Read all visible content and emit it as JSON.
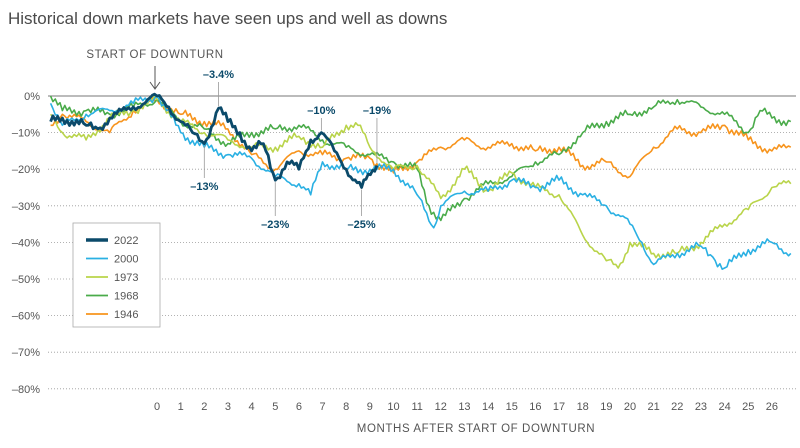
{
  "chart_data": {
    "type": "line",
    "title": "Historical down markets have seen ups and well as downs",
    "xlabel": "MONTHS AFTER START OF DOWNTURN",
    "ylabel": "",
    "start_label": "START OF DOWNTURN",
    "xlim": [
      -4.6,
      26.9
    ],
    "ylim": [
      -80,
      0
    ],
    "x_ticks": [
      "0",
      "1",
      "2",
      "3",
      "4",
      "5",
      "6",
      "7",
      "8",
      "9",
      "10",
      "11",
      "12",
      "13",
      "14",
      "15",
      "16",
      "17",
      "18",
      "19",
      "20",
      "21",
      "22",
      "23",
      "24",
      "25",
      "26"
    ],
    "y_ticks": [
      {
        "v": 0,
        "label": "0%"
      },
      {
        "v": -10,
        "label": "–10%"
      },
      {
        "v": -20,
        "label": "–20%"
      },
      {
        "v": -30,
        "label": "–30%"
      },
      {
        "v": -40,
        "label": "–40%"
      },
      {
        "v": -50,
        "label": "–50%"
      },
      {
        "v": -60,
        "label": "–60%"
      },
      {
        "v": -70,
        "label": "–70%"
      },
      {
        "v": -80,
        "label": "–80%"
      }
    ],
    "grid": "dotted horizontal",
    "legend_position": "left",
    "series": [
      {
        "name": "1946",
        "color": "#f7941d",
        "width": 1.6,
        "x": [
          -4.5,
          -4,
          -3,
          -2,
          -1,
          0,
          1,
          2,
          3,
          4,
          5,
          6,
          7,
          8,
          9,
          10,
          11,
          12,
          13,
          14,
          15,
          16,
          17,
          18,
          19,
          20,
          21,
          22,
          23,
          24,
          25,
          26,
          26.8
        ],
        "y": [
          -8,
          -5,
          -7,
          -10,
          -4,
          -1,
          -5,
          -7,
          -9,
          -16,
          -20,
          -15,
          -16,
          -17,
          -17,
          -21,
          -18,
          -14,
          -12,
          -14,
          -13,
          -15,
          -14,
          -19,
          -18,
          -22,
          -14,
          -9,
          -10,
          -8,
          -12,
          -15,
          -14
        ]
      },
      {
        "name": "1968",
        "color": "#4aab4a",
        "width": 1.6,
        "x": [
          -4.5,
          -4,
          -3,
          -2,
          -1,
          0,
          1,
          2,
          3,
          4,
          5,
          6,
          7,
          8,
          9,
          10,
          11,
          11.5,
          12,
          13,
          14,
          15,
          16,
          17,
          18,
          19,
          20,
          21,
          22,
          23,
          24,
          25,
          25.5,
          26,
          26.8
        ],
        "y": [
          0,
          -4,
          -4,
          -5,
          -3,
          -1,
          -7,
          -9,
          -13,
          -10,
          -9,
          -8,
          -12,
          -14,
          -16,
          -18,
          -20,
          -30,
          -34,
          -28,
          -24,
          -22,
          -18,
          -16,
          -10,
          -7,
          -5,
          -3,
          -1,
          -3,
          -5,
          -10,
          -4,
          -6,
          -7
        ]
      },
      {
        "name": "1973",
        "color": "#b9d44a",
        "width": 1.6,
        "x": [
          -4.5,
          -4,
          -3,
          -2,
          -1,
          0,
          1,
          2,
          3,
          4,
          5,
          6,
          7,
          8,
          8.5,
          9,
          10,
          11,
          12,
          13,
          14,
          15,
          16,
          17,
          18,
          19,
          19.5,
          20,
          21,
          22,
          23,
          24,
          25,
          26,
          26.8
        ],
        "y": [
          -5,
          -10,
          -12,
          -6,
          -4,
          -1,
          -7,
          -10,
          -12,
          -14,
          -14,
          -11,
          -14,
          -8,
          -8,
          -14,
          -20,
          -19,
          -28,
          -20,
          -26,
          -21,
          -25,
          -27,
          -38,
          -45,
          -47,
          -40,
          -43,
          -43,
          -40,
          -35,
          -31,
          -25,
          -24
        ]
      },
      {
        "name": "2000",
        "color": "#2ab0e3",
        "width": 1.6,
        "x": [
          -4.5,
          -4,
          -3,
          -2,
          -1,
          0,
          1,
          2,
          3,
          4,
          5,
          6,
          6.5,
          7,
          8,
          9,
          10,
          11,
          11.7,
          12,
          13,
          14,
          15,
          16,
          17,
          18,
          19,
          20,
          20.5,
          21,
          22,
          23,
          23.5,
          24,
          25,
          26,
          26.8
        ],
        "y": [
          -2,
          -8,
          -5,
          -4,
          -2,
          0,
          -10,
          -14,
          -16,
          -17,
          -22,
          -24,
          -27,
          -18,
          -20,
          -20,
          -20,
          -27,
          -36,
          -30,
          -26,
          -26,
          -23,
          -25,
          -23,
          -27,
          -30,
          -35,
          -40,
          -46,
          -43,
          -41,
          -44,
          -47,
          -42,
          -40,
          -43
        ]
      },
      {
        "name": "2022",
        "color": "#0b4a6a",
        "width": 2.8,
        "x": [
          -4.5,
          -4,
          -3,
          -2.5,
          -2,
          -1,
          0,
          0.5,
          1,
          1.5,
          2,
          2.6,
          3,
          3.5,
          4,
          4.5,
          5,
          5.5,
          6,
          6.5,
          6.95,
          7.5,
          8,
          8.65,
          9.3
        ],
        "y": [
          -7,
          -6,
          -8,
          -9,
          -6,
          -3,
          0,
          -3,
          -7,
          -10,
          -13,
          -3.4,
          -7,
          -10,
          -15,
          -13,
          -23,
          -18,
          -20,
          -12,
          -10,
          -15,
          -20,
          -25,
          -19
        ]
      }
    ],
    "legend_order": [
      "2022",
      "2000",
      "1973",
      "1968",
      "1946"
    ],
    "annotations": [
      {
        "text": "–3.4%",
        "x": 2.6,
        "y": -3.4,
        "pos": "above"
      },
      {
        "text": "–13%",
        "x": 2.0,
        "y": -13,
        "pos": "below"
      },
      {
        "text": "–23%",
        "x": 5.0,
        "y": -23,
        "pos": "below"
      },
      {
        "text": "–10%",
        "x": 6.95,
        "y": -10,
        "pos": "above"
      },
      {
        "text": "–25%",
        "x": 8.65,
        "y": -25,
        "pos": "below"
      },
      {
        "text": "–19%",
        "x": 9.3,
        "y": -19,
        "pos": "above"
      }
    ]
  }
}
